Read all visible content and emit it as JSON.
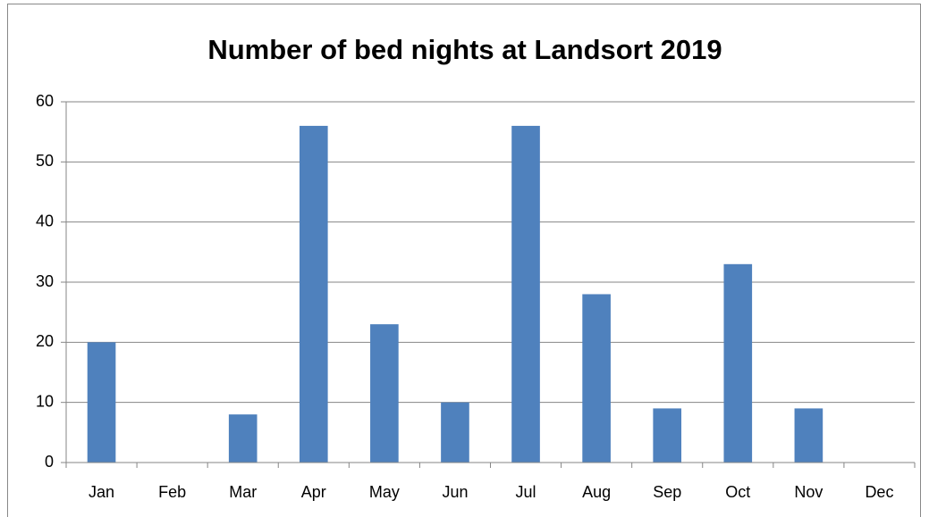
{
  "chart_data": {
    "type": "bar",
    "title": "Number of bed nights at Landsort 2019",
    "categories": [
      "Jan",
      "Feb",
      "Mar",
      "Apr",
      "May",
      "Jun",
      "Jul",
      "Aug",
      "Sep",
      "Oct",
      "Nov",
      "Dec"
    ],
    "values": [
      20,
      0,
      8,
      56,
      23,
      10,
      56,
      28,
      9,
      33,
      9,
      0
    ],
    "color": "#4f81bd",
    "ylim": [
      0,
      60
    ],
    "yticks": [
      0,
      10,
      20,
      30,
      40,
      50,
      60
    ],
    "grid": true
  }
}
